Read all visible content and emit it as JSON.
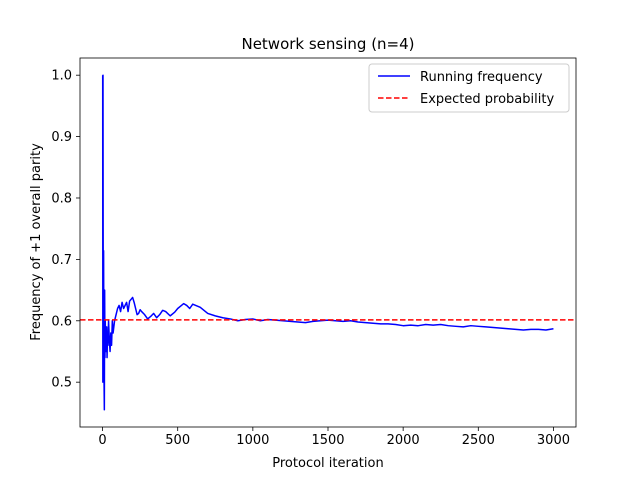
{
  "chart_data": {
    "type": "line",
    "title": "Network sensing (n=4)",
    "xlabel": "Protocol iteration",
    "ylabel": "Frequency of +1 overall parity",
    "xlim": [
      -150,
      3150
    ],
    "ylim": [
      0.427,
      1.028
    ],
    "xticks": [
      0,
      500,
      1000,
      1500,
      2000,
      2500,
      3000
    ],
    "yticks": [
      0.5,
      0.6,
      0.7,
      0.8,
      0.9,
      1.0
    ],
    "xtick_labels": [
      "0",
      "500",
      "1000",
      "1500",
      "2000",
      "2500",
      "3000"
    ],
    "ytick_labels": [
      "0.5",
      "0.6",
      "0.7",
      "0.8",
      "0.9",
      "1.0"
    ],
    "legend_position": "top-right",
    "series": [
      {
        "name": "Running frequency",
        "color": "#0000ff",
        "style": "solid",
        "x": [
          1,
          2,
          3,
          4,
          5,
          6,
          7,
          8,
          9,
          10,
          12,
          14,
          16,
          18,
          20,
          22,
          25,
          28,
          30,
          33,
          36,
          40,
          45,
          50,
          55,
          60,
          65,
          70,
          75,
          80,
          90,
          100,
          110,
          120,
          130,
          140,
          150,
          160,
          170,
          180,
          190,
          200,
          210,
          220,
          230,
          240,
          250,
          260,
          280,
          300,
          320,
          340,
          360,
          380,
          400,
          420,
          450,
          480,
          500,
          520,
          540,
          560,
          580,
          600,
          650,
          700,
          750,
          800,
          850,
          900,
          950,
          1000,
          1050,
          1100,
          1150,
          1200,
          1250,
          1300,
          1350,
          1400,
          1450,
          1500,
          1550,
          1600,
          1650,
          1700,
          1750,
          1800,
          1850,
          1900,
          1950,
          2000,
          2050,
          2100,
          2150,
          2200,
          2250,
          2300,
          2350,
          2400,
          2450,
          2500,
          2550,
          2600,
          2650,
          2700,
          2750,
          2800,
          2850,
          2900,
          2950,
          3000
        ],
        "values": [
          1.0,
          0.5,
          1.0,
          0.75,
          0.6,
          0.5,
          0.714,
          0.625,
          0.556,
          0.5,
          0.455,
          0.65,
          0.54,
          0.6,
          0.57,
          0.58,
          0.55,
          0.59,
          0.54,
          0.58,
          0.56,
          0.6,
          0.57,
          0.55,
          0.58,
          0.56,
          0.6,
          0.58,
          0.59,
          0.6,
          0.61,
          0.62,
          0.625,
          0.615,
          0.63,
          0.62,
          0.625,
          0.63,
          0.615,
          0.632,
          0.635,
          0.638,
          0.63,
          0.62,
          0.61,
          0.612,
          0.618,
          0.615,
          0.61,
          0.603,
          0.607,
          0.612,
          0.605,
          0.61,
          0.617,
          0.615,
          0.608,
          0.614,
          0.62,
          0.624,
          0.628,
          0.625,
          0.62,
          0.627,
          0.622,
          0.612,
          0.608,
          0.605,
          0.603,
          0.6,
          0.602,
          0.603,
          0.6,
          0.602,
          0.601,
          0.6,
          0.599,
          0.598,
          0.597,
          0.599,
          0.6,
          0.601,
          0.6,
          0.599,
          0.6,
          0.598,
          0.597,
          0.596,
          0.595,
          0.595,
          0.594,
          0.592,
          0.593,
          0.592,
          0.594,
          0.593,
          0.594,
          0.592,
          0.591,
          0.59,
          0.592,
          0.591,
          0.59,
          0.589,
          0.588,
          0.587,
          0.586,
          0.585,
          0.586,
          0.586,
          0.585,
          0.587
        ]
      },
      {
        "name": "Expected probability",
        "color": "#ff0000",
        "style": "dashed",
        "constant": 0.6015
      }
    ]
  }
}
